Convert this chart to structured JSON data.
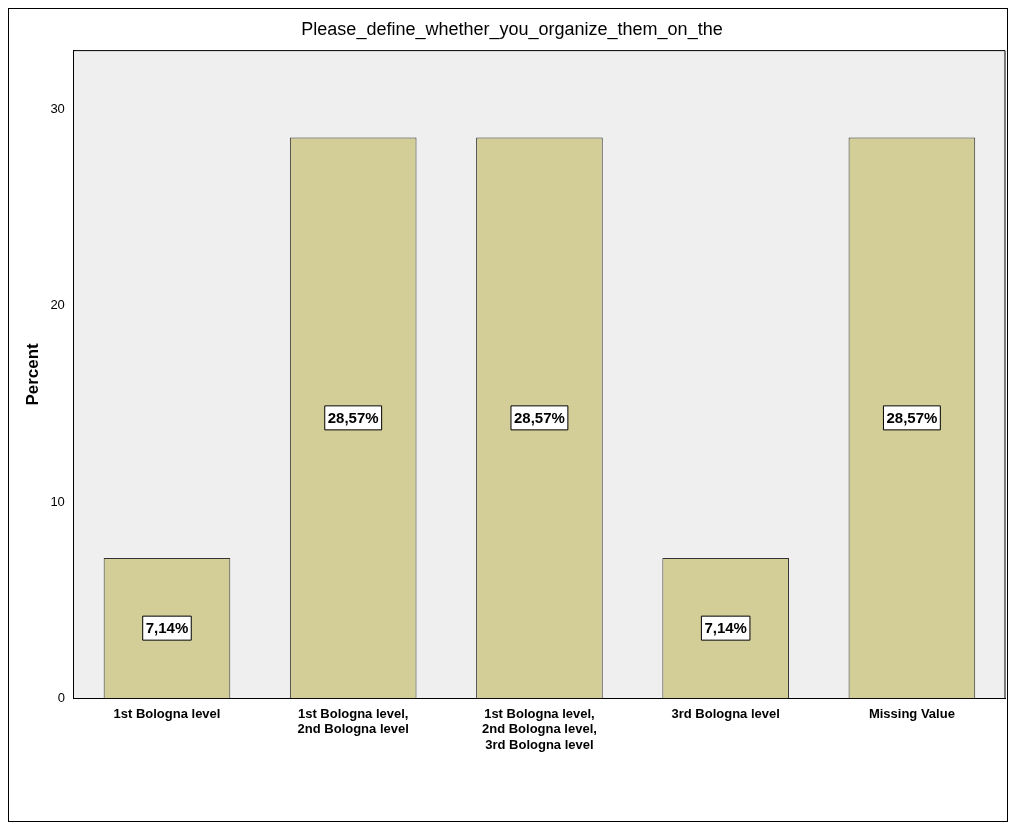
{
  "chart_data": {
    "type": "bar",
    "title": "Please_define_whether_you_organize_them_on_the",
    "ylabel": "Percent",
    "categories": [
      "1st Bologna level",
      "1st Bologna level, 2nd Bologna level",
      "1st Bologna level, 2nd Bologna level, 3rd Bologna level",
      "3rd Bologna level",
      "Missing Value"
    ],
    "values": [
      7.14,
      28.57,
      28.57,
      7.14,
      28.57
    ],
    "value_labels": [
      "7,14%",
      "28,57%",
      "28,57%",
      "7,14%",
      "28,57%"
    ],
    "color": "#d3ce97",
    "ylim": [
      0,
      33
    ],
    "yticks": [
      0,
      10,
      20,
      30
    ],
    "grid": false,
    "legend": false
  }
}
